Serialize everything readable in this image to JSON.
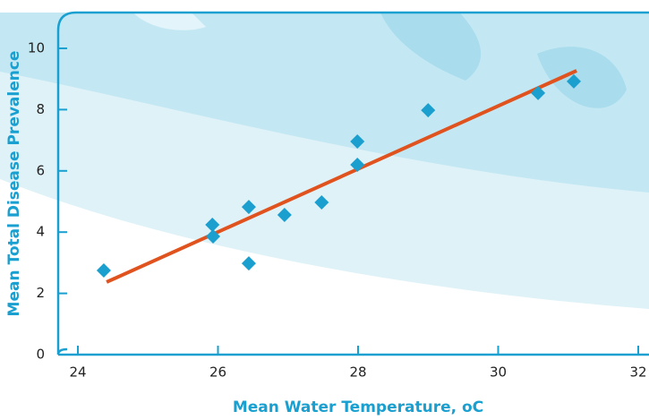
{
  "chart_data": {
    "type": "scatter",
    "x_label": "Mean Water Temperature, oC",
    "y_label": "Mean Total Disease Prevalence",
    "xlim": [
      24,
      32
    ],
    "xticks": [
      24,
      26,
      28,
      30,
      32
    ],
    "ylim": [
      0,
      10
    ],
    "yticks": [
      0,
      2,
      4,
      6,
      8,
      10
    ],
    "series": [
      {
        "color": "#1a9fcf",
        "x": [
          24.37,
          25.92,
          25.93,
          26.44,
          26.44,
          26.95,
          27.48,
          27.99,
          27.99,
          29.0,
          30.57,
          31.08
        ],
        "values": [
          2.75,
          4.24,
          3.86,
          4.82,
          2.98,
          4.56,
          4.97,
          6.96,
          6.2,
          7.98,
          8.54,
          8.92
        ]
      }
    ],
    "trendline": {
      "color": "#e0531f",
      "x": [
        24.41,
        31.12
      ],
      "values": [
        2.37,
        9.27
      ]
    }
  }
}
